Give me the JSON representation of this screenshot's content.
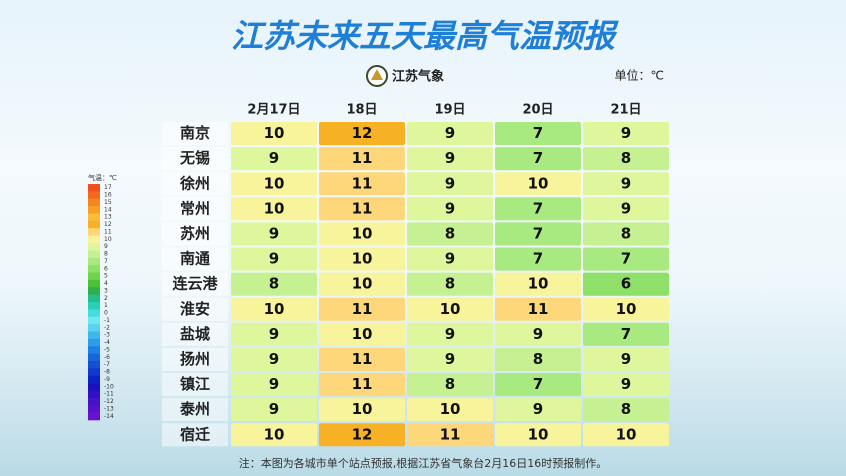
{
  "title": "江苏未来五天最高气温预报",
  "logo_text": "江苏气象",
  "unit": "单位：℃",
  "table": {
    "columns": [
      "2月17日",
      "18日",
      "19日",
      "20日",
      "21日"
    ],
    "rows": [
      {
        "city": "南京",
        "values": [
          10,
          12,
          9,
          7,
          9
        ]
      },
      {
        "city": "无锡",
        "values": [
          9,
          11,
          9,
          7,
          8
        ]
      },
      {
        "city": "徐州",
        "values": [
          10,
          11,
          9,
          10,
          9
        ]
      },
      {
        "city": "常州",
        "values": [
          10,
          11,
          9,
          7,
          9
        ]
      },
      {
        "city": "苏州",
        "values": [
          9,
          10,
          8,
          7,
          8
        ]
      },
      {
        "city": "南通",
        "values": [
          9,
          10,
          9,
          7,
          7
        ]
      },
      {
        "city": "连云港",
        "values": [
          8,
          10,
          8,
          10,
          6
        ]
      },
      {
        "city": "淮安",
        "values": [
          10,
          11,
          10,
          11,
          10
        ]
      },
      {
        "city": "盐城",
        "values": [
          9,
          10,
          9,
          9,
          7
        ]
      },
      {
        "city": "扬州",
        "values": [
          9,
          11,
          9,
          8,
          9
        ]
      },
      {
        "city": "镇江",
        "values": [
          9,
          11,
          8,
          7,
          9
        ]
      },
      {
        "city": "泰州",
        "values": [
          9,
          10,
          10,
          9,
          8
        ]
      },
      {
        "city": "宿迁",
        "values": [
          10,
          12,
          11,
          10,
          10
        ]
      }
    ]
  },
  "legend": {
    "title": "气温：℃",
    "levels": [
      17,
      16,
      15,
      14,
      13,
      12,
      11,
      10,
      9,
      8,
      7,
      6,
      5,
      4,
      3,
      2,
      1,
      0,
      -1,
      -2,
      -3,
      -4,
      -5,
      -6,
      -7,
      -8,
      -9,
      -10,
      -11,
      -12,
      -13,
      -14
    ],
    "colors": [
      "#f0501e",
      "#f26a1e",
      "#f5851e",
      "#f7a020",
      "#f9bd3a",
      "#f6b224",
      "#fdd77a",
      "#f7f49c",
      "#def79c",
      "#c6f193",
      "#a9ea80",
      "#8ee068",
      "#6fd44a",
      "#4cc23a",
      "#2fb04a",
      "#22c08a",
      "#28d0b8",
      "#46dde0",
      "#6fe8f0",
      "#5ad2f0",
      "#3cb8ec",
      "#2a9ce8",
      "#1e80e4",
      "#1866dc",
      "#1450d4",
      "#1038cc",
      "#0c22c4",
      "#1a10c0",
      "#3010c4",
      "#4410c8",
      "#5810cc",
      "#6c10d0"
    ]
  },
  "note": "注：本图为各城市单个站点预报,根据江苏省气象台2月16日16时预报制作。"
}
